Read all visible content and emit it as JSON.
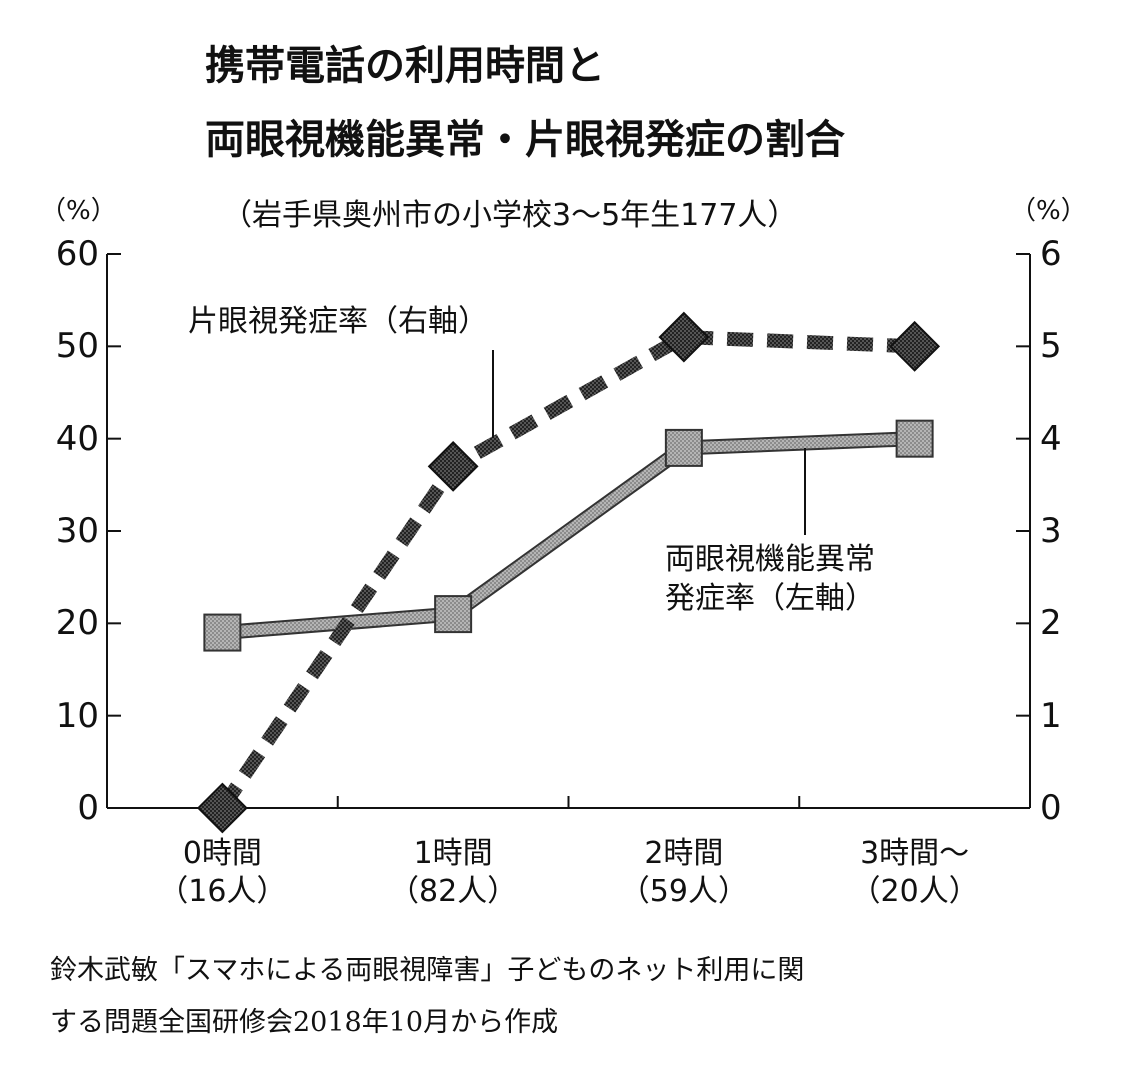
{
  "chart_data": {
    "type": "line",
    "title_line1": "携帯電話の利用時間と",
    "title_line2": "両眼視機能異常・片眼視発症の割合",
    "subtitle": "（岩手県奥州市の小学校3〜5年生177人）",
    "left_unit": "（%）",
    "right_unit": "（%）",
    "left_ticks": [
      "0",
      "10",
      "20",
      "30",
      "40",
      "50",
      "60"
    ],
    "right_ticks": [
      "0",
      "1",
      "2",
      "3",
      "4",
      "5",
      "6"
    ],
    "ylim_left": [
      0,
      60
    ],
    "ylim_right": [
      0,
      6
    ],
    "categories": [
      {
        "label": "0時間",
        "count": "（16人）"
      },
      {
        "label": "1時間",
        "count": "（82人）"
      },
      {
        "label": "2時間",
        "count": "（59人）"
      },
      {
        "label": "3時間〜",
        "count": "（20人）"
      }
    ],
    "series": [
      {
        "label": "片眼視発症率（右軸）",
        "axis": "right",
        "style": "dashed",
        "marker": "diamond",
        "color": "#3a3a3a",
        "values": [
          0,
          3.7,
          5.1,
          5.0
        ]
      },
      {
        "label_line1": "両眼視機能異常",
        "label_line2": "発症率（左軸）",
        "axis": "left",
        "style": "solid",
        "marker": "square",
        "color": "#9a9a9a",
        "values": [
          19,
          21,
          39,
          40
        ]
      }
    ]
  },
  "source_line1": "鈴木武敏「スマホによる両眼視障害」子どものネット利用に関",
  "source_line2": "する問題全国研修会2018年10月から作成"
}
